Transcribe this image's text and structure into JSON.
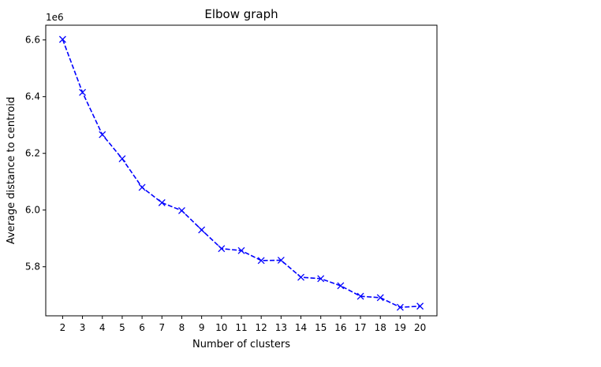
{
  "chart_data": {
    "type": "line",
    "title": "Elbow graph",
    "xlabel": "Number of clusters",
    "ylabel": "Average distance to centroid",
    "y_offset_label": "1e6",
    "x": [
      2,
      3,
      4,
      5,
      6,
      7,
      8,
      9,
      10,
      11,
      12,
      13,
      14,
      15,
      16,
      17,
      18,
      19,
      20
    ],
    "series": [
      {
        "values": [
          6602000,
          6415000,
          6266000,
          6181000,
          6080000,
          6026000,
          5998000,
          5930000,
          5864000,
          5857000,
          5822000,
          5823000,
          5763000,
          5758000,
          5733000,
          5696000,
          5691000,
          5657000,
          5661000
        ],
        "color": "#0000ff",
        "line_style": "dashed",
        "marker": "x"
      }
    ],
    "xlim": [
      1.15,
      20.85
    ],
    "ylim": [
      5627000.0,
      6652000.0
    ],
    "x_ticks": [
      2,
      3,
      4,
      5,
      6,
      7,
      8,
      9,
      10,
      11,
      12,
      13,
      14,
      15,
      16,
      17,
      18,
      19,
      20
    ],
    "x_tick_labels": [
      "2",
      "3",
      "4",
      "5",
      "6",
      "7",
      "8",
      "9",
      "10",
      "11",
      "12",
      "13",
      "14",
      "15",
      "16",
      "17",
      "18",
      "19",
      "20"
    ],
    "y_ticks": [
      5800000,
      6000000,
      6200000,
      6400000,
      6600000
    ],
    "y_tick_labels": [
      "5.8",
      "6.0",
      "6.2",
      "6.4",
      "6.6"
    ],
    "grid": false,
    "legend": false
  }
}
